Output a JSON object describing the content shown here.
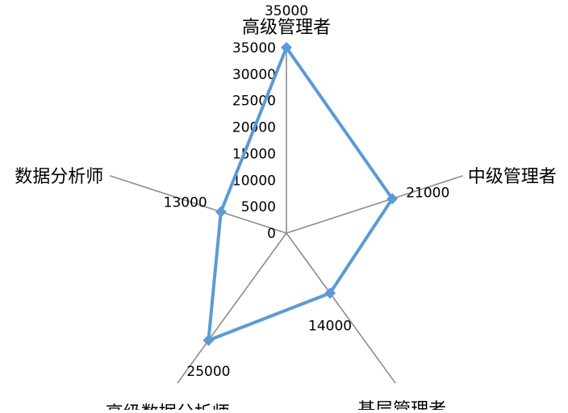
{
  "chart_data": {
    "type": "radar",
    "categories": [
      "高级管理者",
      "中级管理者",
      "基层管理者",
      "高级数据分析师",
      "数据分析师"
    ],
    "series": [
      {
        "values": [
          35000,
          21000,
          14000,
          25000,
          13000
        ]
      }
    ],
    "rlim": [
      0,
      35000
    ],
    "tick_labels": [
      "0",
      "5000",
      "10000",
      "15000",
      "20000",
      "25000",
      "30000",
      "35000"
    ],
    "data_labels": [
      "35000",
      "21000",
      "14000",
      "25000",
      "13000"
    ],
    "grid": false,
    "legend": "none",
    "colors": {
      "series": "#5b9bd5",
      "axis": "#8c8c8c"
    }
  }
}
